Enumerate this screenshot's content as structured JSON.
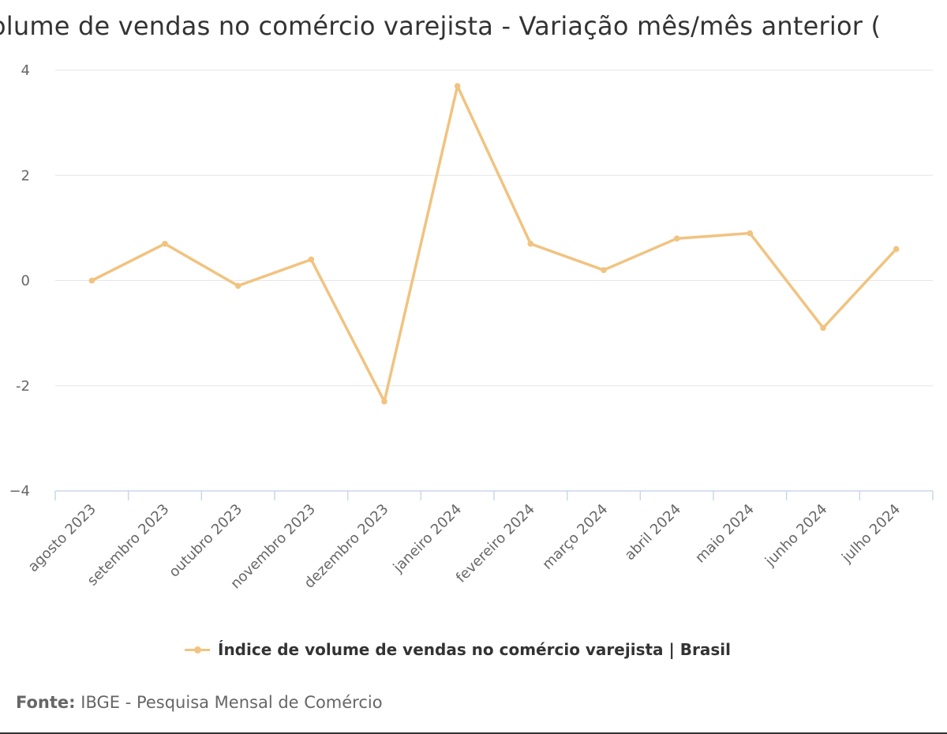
{
  "chart_data": {
    "type": "line",
    "title": "olume de vendas no comércio varejista - Variação mês/mês anterior (",
    "categories": [
      "agosto 2023",
      "setembro 2023",
      "outubro 2023",
      "novembro 2023",
      "dezembro 2023",
      "janeiro 2024",
      "fevereiro 2024",
      "março 2024",
      "abril 2024",
      "maio 2024",
      "junho 2024",
      "julho 2024"
    ],
    "series": [
      {
        "name": "Índice de volume de vendas no comércio varejista | Brasil",
        "values": [
          0.0,
          0.7,
          -0.1,
          0.4,
          -2.3,
          3.7,
          0.7,
          0.2,
          0.8,
          0.9,
          -0.9,
          0.6
        ]
      }
    ],
    "ylim": [
      -4,
      4
    ],
    "yticks": [
      "4",
      "2",
      "0",
      "-2",
      "−4"
    ],
    "ytick_values": [
      4,
      2,
      0,
      -2,
      -4
    ],
    "grid": true,
    "legend_position": "bottom-center",
    "color": "#f1c380"
  },
  "footer": {
    "label": "Fonte:",
    "text": "IBGE - Pesquisa Mensal de Comércio"
  }
}
